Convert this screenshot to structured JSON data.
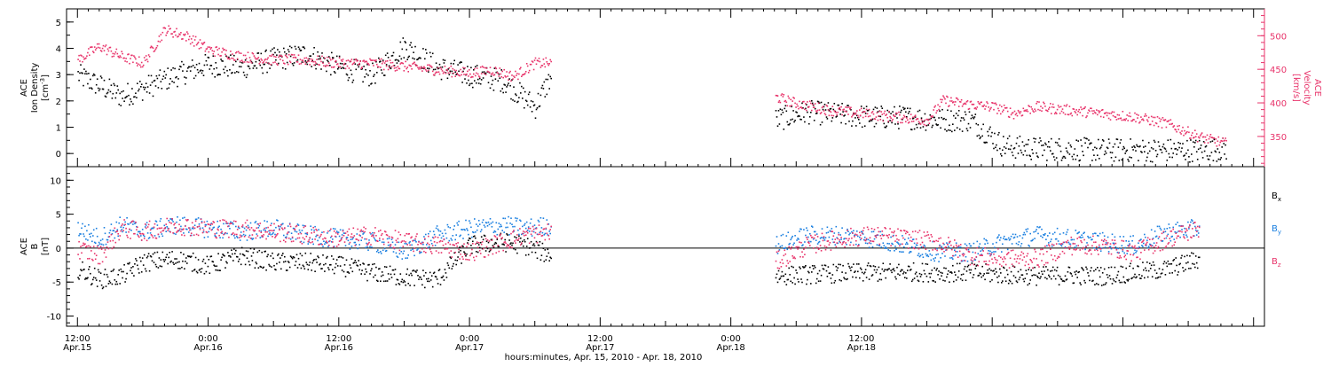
{
  "chart_data": [
    {
      "type": "scatter",
      "panel": "top",
      "left_axis": {
        "label_lines": [
          "ACE",
          "Ion Density"
        ],
        "unit_base": "[cm",
        "unit_sup": "-3",
        "unit_end": "]",
        "ylim": [
          -0.5,
          5.5
        ],
        "ticks": [
          0,
          1,
          2,
          3,
          4,
          5
        ]
      },
      "right_axis": {
        "label_lines": [
          "ACE",
          "Velocity",
          "[km/s]"
        ],
        "ylim": [
          305,
          540
        ],
        "ticks": [
          350,
          400,
          450,
          500
        ]
      },
      "series": [
        {
          "color": "#000000",
          "axis": "left",
          "gaps": [
            [
              43.5,
              64.0
            ]
          ],
          "x": [
            0,
            2,
            4,
            6,
            9,
            12,
            15,
            18,
            21,
            24,
            27,
            30,
            33,
            36,
            39,
            42,
            43.5,
            64,
            67,
            70,
            73,
            76,
            79,
            82,
            85,
            88,
            91,
            94,
            97,
            100,
            103,
            105.5
          ],
          "y": [
            3.0,
            2.6,
            2.2,
            2.5,
            3.0,
            3.4,
            3.3,
            3.6,
            3.8,
            3.3,
            3.0,
            4.1,
            3.3,
            3.0,
            2.8,
            1.8,
            3.0,
            1.3,
            1.6,
            1.5,
            1.4,
            1.4,
            1.3,
            1.3,
            0.3,
            0.2,
            0.2,
            0.15,
            0.15,
            0.15,
            0.15,
            0.2
          ]
        },
        {
          "color": "#e8336a",
          "axis": "right",
          "gaps": [
            [
              43.5,
              64.0
            ]
          ],
          "x": [
            0,
            2,
            4,
            6,
            8,
            10,
            12,
            15,
            18,
            21,
            24,
            27,
            30,
            33,
            36,
            38,
            40,
            42,
            43.5,
            64,
            66,
            69,
            72,
            75,
            78,
            79.5,
            81,
            84,
            86,
            88,
            91,
            94,
            97,
            100,
            103,
            105.5
          ],
          "y": [
            465,
            485,
            470,
            460,
            510,
            500,
            480,
            470,
            465,
            465,
            460,
            460,
            455,
            450,
            445,
            450,
            440,
            460,
            460,
            410,
            400,
            390,
            385,
            380,
            375,
            405,
            400,
            395,
            385,
            395,
            390,
            385,
            380,
            370,
            350,
            340
          ]
        }
      ]
    },
    {
      "type": "scatter",
      "panel": "bottom",
      "left_axis": {
        "label_lines": [
          "ACE",
          "B",
          "[nT]"
        ],
        "ylim": [
          -11.5,
          12
        ],
        "ticks": [
          -10,
          -5,
          0,
          5,
          10
        ]
      },
      "series": [
        {
          "name": "B",
          "sub": "x",
          "color": "#000000",
          "gaps": [
            [
              43.5,
              64.0
            ]
          ],
          "x": [
            0,
            2,
            4,
            6,
            9,
            12,
            15,
            18,
            21,
            24,
            27,
            30,
            33,
            36,
            39,
            41,
            43.5,
            64,
            67,
            70,
            73,
            76,
            79,
            82,
            85,
            88,
            91,
            94,
            97,
            100,
            103
          ],
          "y": [
            -3,
            -4.5,
            -4.0,
            -2.0,
            -1.5,
            -2.5,
            -1.0,
            -2.0,
            -2.0,
            -2.5,
            -3.5,
            -4.2,
            -4.5,
            0.5,
            1.0,
            0.5,
            -1.0,
            -4.0,
            -3.8,
            -3.6,
            -3.5,
            -3.4,
            -3.5,
            -3.5,
            -3.8,
            -4.0,
            -3.9,
            -4.0,
            -3.5,
            -3.0,
            -1.5
          ]
        },
        {
          "name": "B",
          "sub": "y",
          "color": "#1a7fe0",
          "gaps": [
            [
              43.5,
              64.0
            ]
          ],
          "x": [
            0,
            2,
            4,
            6,
            9,
            12,
            15,
            18,
            21,
            24,
            27,
            30,
            33,
            36,
            39,
            41,
            43.5,
            64,
            67,
            70,
            73,
            76,
            79,
            82,
            85,
            88,
            91,
            94,
            97,
            100,
            103
          ],
          "y": [
            3,
            1.5,
            3.5,
            2.5,
            3.5,
            3.0,
            2.5,
            3.0,
            2.0,
            1.5,
            1.0,
            -0.5,
            2.0,
            3.0,
            3.5,
            3.0,
            3.5,
            0.5,
            2.0,
            2.0,
            1.5,
            0.5,
            -0.5,
            -0.5,
            1.0,
            2.0,
            1.5,
            1.0,
            0.5,
            2.5,
            3.0
          ]
        },
        {
          "name": "B",
          "sub": "z",
          "color": "#e8336a",
          "gaps": [
            [
              43.5,
              64.0
            ]
          ],
          "x": [
            0,
            2,
            4,
            6,
            9,
            12,
            15,
            18,
            21,
            24,
            27,
            30,
            33,
            36,
            39,
            41,
            43.5,
            64,
            67,
            70,
            73,
            76,
            79,
            82,
            85,
            88,
            91,
            94,
            97,
            100,
            103
          ],
          "y": [
            0,
            -1.0,
            3.0,
            2.5,
            3.5,
            3.0,
            3.0,
            2.5,
            2.0,
            1.5,
            2.0,
            1.0,
            0.5,
            -0.5,
            1.0,
            2.0,
            2.5,
            -2.0,
            0.5,
            1.5,
            2.0,
            1.5,
            1.0,
            -1.0,
            -1.5,
            -1.5,
            0.5,
            0.5,
            -0.5,
            1.5,
            3.0
          ]
        }
      ]
    }
  ],
  "x_axis": {
    "range_hours": [
      -1.0,
      109.0
    ],
    "major_ticks": [
      {
        "h": 0,
        "time": "12:00",
        "date": "Apr.15"
      },
      {
        "h": 12,
        "time": "0:00",
        "date": "Apr.16"
      },
      {
        "h": 24,
        "time": "12:00",
        "date": "Apr.16"
      },
      {
        "h": 36,
        "time": "0:00",
        "date": "Apr.17"
      },
      {
        "h": 48,
        "time": "12:00",
        "date": "Apr.17"
      },
      {
        "h": 60,
        "time": "0:00",
        "date": "Apr.18"
      },
      {
        "h": 72,
        "time": "12:00",
        "date": "Apr.18"
      }
    ],
    "title": "hours:minutes, Apr. 15, 2010 - Apr. 18, 2010"
  },
  "colors": {
    "black": "#000000",
    "pink": "#e8336a",
    "blue": "#1a7fe0"
  }
}
